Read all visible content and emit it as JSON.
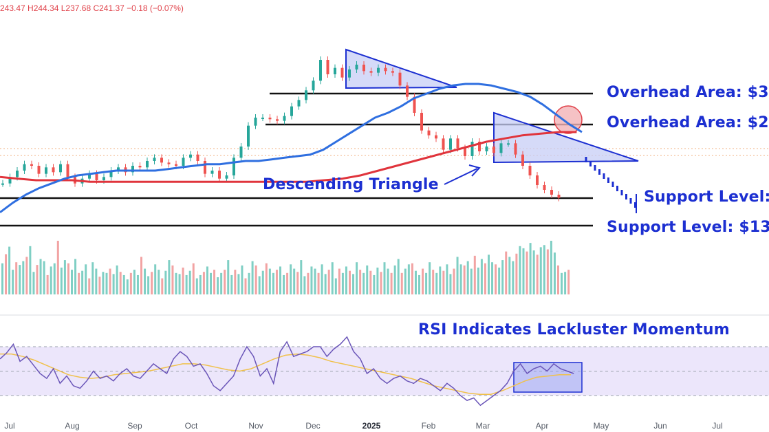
{
  "ohlc_text": "243.47  H244.34  L237.68  C241.37  −0.18  (−0.07%)",
  "annotations": {
    "overhead_1": "Overhead Area: $3",
    "overhead_2": "Overhead Area: $2",
    "support_1": "Support Level:",
    "support_2": "Support Level: $13",
    "pattern": "Descending Triangle",
    "rsi_title": "RSI Indicates Lackluster Momentum"
  },
  "colors": {
    "annotation": "#1c2fd1",
    "ma_50": "#2f6fe0",
    "ma_200": "#e0343c",
    "volume_up": "#7fcfc4",
    "volume_down": "#f2a3a3",
    "rsi_line": "#6a55b8",
    "rsi_ma": "#f0c14b",
    "rsi_band": "#ece6fb"
  },
  "chart_data": {
    "type": "line",
    "x_axis_labels": [
      "Jul",
      "Aug",
      "Sep",
      "Oct",
      "Nov",
      "Dec",
      "2025",
      "Feb",
      "Mar",
      "Apr",
      "May",
      "Jun",
      "Jul"
    ],
    "x_axis_bold": "2025",
    "price_series": [
      100,
      104,
      108,
      112,
      111,
      106,
      110,
      107,
      112,
      104,
      100,
      103,
      106,
      102,
      104,
      108,
      110,
      107,
      111,
      110,
      114,
      116,
      113,
      112,
      111,
      116,
      118,
      114,
      106,
      108,
      103,
      105,
      116,
      123,
      136,
      141,
      141,
      140,
      139,
      142,
      148,
      152,
      158,
      164,
      177,
      168,
      172,
      166,
      171,
      174,
      170,
      169,
      172,
      170,
      169,
      161,
      154,
      144,
      133,
      130,
      128,
      121,
      128,
      122,
      117,
      126,
      120,
      123,
      119,
      125,
      125,
      118,
      111,
      105,
      99,
      96,
      93,
      91
    ],
    "ma50_series": [
      82,
      88,
      93,
      97,
      100,
      103,
      105,
      106,
      107,
      108,
      108,
      108,
      108,
      109,
      110,
      111,
      112,
      112,
      113,
      114,
      114,
      115,
      116,
      117,
      118,
      121,
      126,
      131,
      136,
      141,
      144,
      148,
      153,
      156,
      159,
      161,
      162,
      162,
      161,
      159,
      157,
      154,
      149,
      143,
      137,
      132
    ],
    "ma200_series": [
      104,
      103,
      102,
      102,
      102,
      101,
      101,
      101,
      101,
      101,
      101,
      101,
      101,
      101,
      101,
      101,
      101,
      101,
      102,
      103,
      105,
      108,
      111,
      114,
      117,
      120,
      123,
      126,
      128,
      130,
      131,
      132,
      132
    ],
    "volume_series": [
      58,
      75,
      89,
      46,
      60,
      55,
      62,
      70,
      90,
      42,
      55,
      66,
      62,
      36,
      52,
      58,
      100,
      50,
      64,
      58,
      46,
      66,
      40,
      44,
      56,
      30,
      60,
      48,
      33,
      42,
      40,
      48,
      38,
      54,
      42,
      36,
      28,
      40,
      46,
      36,
      70,
      48,
      34,
      42,
      56,
      46,
      30,
      44,
      64,
      54,
      40,
      38,
      50,
      36,
      44,
      58,
      30,
      36,
      42,
      52,
      40,
      46,
      32,
      40,
      46,
      64,
      36,
      46,
      38,
      54,
      30,
      40,
      62,
      54,
      34,
      44,
      58,
      48,
      40,
      46,
      52,
      36,
      40,
      56,
      48,
      42,
      64,
      34,
      40,
      52,
      48,
      40,
      56,
      38,
      46,
      60,
      30,
      48,
      40,
      52,
      44,
      38,
      60,
      46,
      40,
      54,
      44,
      36,
      50,
      42,
      60,
      48,
      40,
      54,
      66,
      40,
      48,
      56,
      58,
      44,
      36,
      48,
      40,
      60,
      46,
      40,
      52,
      44,
      56,
      38,
      48,
      70,
      56,
      54,
      62,
      48,
      72,
      50,
      66,
      58,
      74,
      60,
      56,
      50,
      64,
      80,
      70,
      62,
      76,
      90,
      86,
      80,
      96,
      82,
      74,
      88,
      92,
      84,
      100,
      78,
      54,
      40,
      42,
      46
    ],
    "rsi_series": [
      60,
      65,
      72,
      58,
      62,
      55,
      48,
      44,
      52,
      40,
      46,
      38,
      36,
      42,
      50,
      44,
      46,
      42,
      48,
      52,
      46,
      44,
      50,
      56,
      52,
      48,
      60,
      66,
      62,
      54,
      56,
      48,
      38,
      34,
      40,
      46,
      60,
      70,
      62,
      46,
      52,
      40,
      66,
      74,
      62,
      64,
      66,
      70,
      70,
      62,
      68,
      72,
      78,
      66,
      60,
      48,
      52,
      44,
      40,
      44,
      46,
      42,
      40,
      44,
      42,
      38,
      34,
      40,
      36,
      30,
      26,
      28,
      22,
      26,
      30,
      34,
      40,
      50,
      56,
      48,
      52,
      54,
      50,
      56,
      52,
      50,
      48
    ],
    "rsi_ma_series": [
      64,
      64,
      62,
      59,
      55,
      51,
      47,
      45,
      44,
      45,
      47,
      48,
      49,
      50,
      52,
      54,
      56,
      56,
      55,
      53,
      51,
      50,
      52,
      56,
      60,
      63,
      64,
      63,
      61,
      58,
      56,
      54,
      52,
      50,
      48,
      46,
      44,
      41,
      38,
      36,
      34,
      32,
      31,
      31,
      34,
      38,
      42,
      45,
      46,
      47,
      47
    ],
    "rsi_levels": [
      70,
      50,
      30
    ],
    "grid": false
  }
}
